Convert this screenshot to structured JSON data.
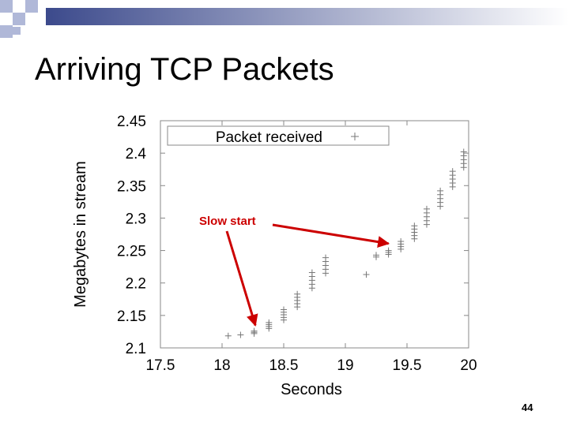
{
  "slide": {
    "title": "Arriving TCP Packets",
    "page_number": "44"
  },
  "colors": {
    "decor_squares": "#b0b8d8",
    "decor_bar": "#3c4a8c",
    "annotation": "#cc0000",
    "marker": "#777777",
    "axis": "#888888"
  },
  "chart_data": {
    "type": "scatter",
    "title": "",
    "xlabel": "Seconds",
    "ylabel": "Megabytes in stream",
    "xlim": [
      17.5,
      20
    ],
    "ylim": [
      2.1,
      2.45
    ],
    "xticks": [
      "17.5",
      "18",
      "18.5",
      "19",
      "19.5",
      "20"
    ],
    "yticks": [
      "2.1",
      "2.15",
      "2.2",
      "2.25",
      "2.3",
      "2.35",
      "2.4",
      "2.45"
    ],
    "grid": false,
    "legend_position": "top",
    "series": [
      {
        "name": "Packet received",
        "marker": "+",
        "points": [
          [
            18.05,
            2.1185
          ],
          [
            18.15,
            2.12
          ],
          [
            18.26,
            2.122
          ],
          [
            18.26,
            2.124
          ],
          [
            18.26,
            2.126
          ],
          [
            18.38,
            2.13
          ],
          [
            18.38,
            2.133
          ],
          [
            18.38,
            2.136
          ],
          [
            18.38,
            2.139
          ],
          [
            18.5,
            2.143
          ],
          [
            18.5,
            2.147
          ],
          [
            18.5,
            2.151
          ],
          [
            18.5,
            2.155
          ],
          [
            18.5,
            2.159
          ],
          [
            18.61,
            2.163
          ],
          [
            18.61,
            2.168
          ],
          [
            18.61,
            2.173
          ],
          [
            18.61,
            2.178
          ],
          [
            18.61,
            2.183
          ],
          [
            18.73,
            2.192
          ],
          [
            18.73,
            2.198
          ],
          [
            18.73,
            2.204
          ],
          [
            18.73,
            2.21
          ],
          [
            18.73,
            2.216
          ],
          [
            18.84,
            2.215
          ],
          [
            18.84,
            2.221
          ],
          [
            18.84,
            2.227
          ],
          [
            18.84,
            2.233
          ],
          [
            18.84,
            2.239
          ],
          [
            19.17,
            2.213
          ],
          [
            19.25,
            2.24
          ],
          [
            19.25,
            2.243
          ],
          [
            19.35,
            2.244
          ],
          [
            19.35,
            2.247
          ],
          [
            19.35,
            2.25
          ],
          [
            19.45,
            2.252
          ],
          [
            19.45,
            2.256
          ],
          [
            19.45,
            2.26
          ],
          [
            19.45,
            2.264
          ],
          [
            19.56,
            2.268
          ],
          [
            19.56,
            2.273
          ],
          [
            19.56,
            2.278
          ],
          [
            19.56,
            2.283
          ],
          [
            19.56,
            2.288
          ],
          [
            19.66,
            2.29
          ],
          [
            19.66,
            2.296
          ],
          [
            19.66,
            2.302
          ],
          [
            19.66,
            2.308
          ],
          [
            19.66,
            2.314
          ],
          [
            19.77,
            2.318
          ],
          [
            19.77,
            2.324
          ],
          [
            19.77,
            2.33
          ],
          [
            19.77,
            2.336
          ],
          [
            19.77,
            2.342
          ],
          [
            19.87,
            2.348
          ],
          [
            19.87,
            2.354
          ],
          [
            19.87,
            2.36
          ],
          [
            19.87,
            2.366
          ],
          [
            19.87,
            2.372
          ],
          [
            19.96,
            2.378
          ],
          [
            19.96,
            2.384
          ],
          [
            19.96,
            2.39
          ],
          [
            19.96,
            2.396
          ],
          [
            19.96,
            2.402
          ]
        ]
      }
    ],
    "annotations": [
      {
        "text": "Slow start",
        "targets": [
          [
            18.27,
            2.125
          ],
          [
            19.35,
            2.251
          ]
        ]
      }
    ]
  }
}
